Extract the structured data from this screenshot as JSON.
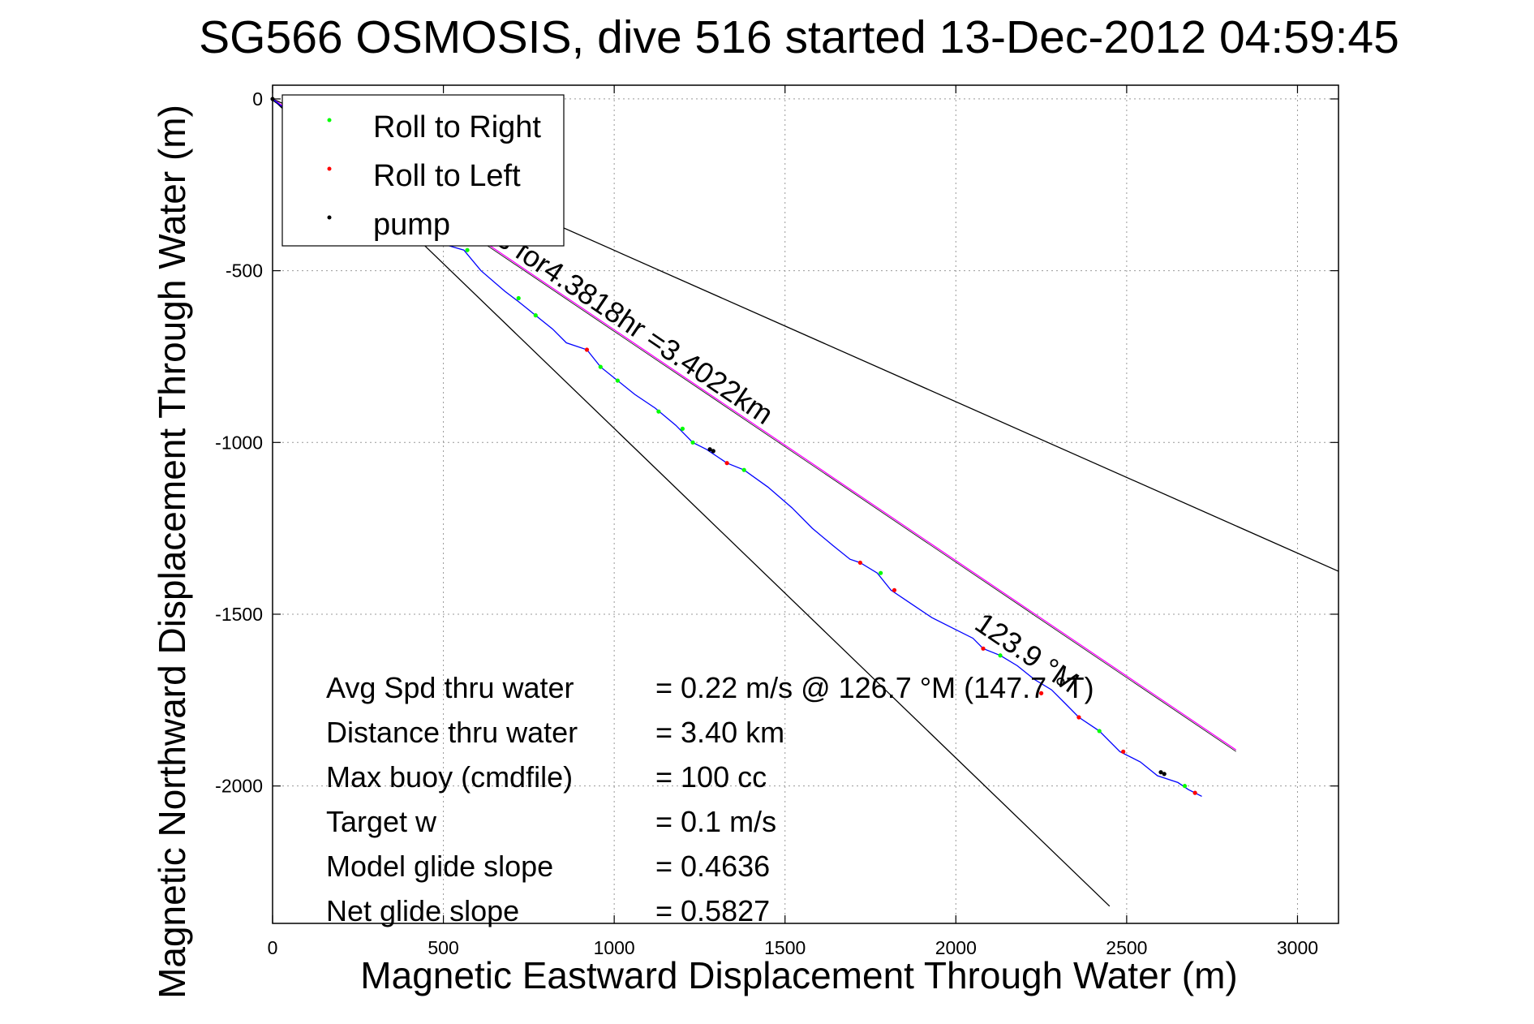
{
  "chart_data": {
    "type": "line",
    "title": "SG566 OSMOSIS, dive 516 started 13-Dec-2012 04:59:45",
    "xlabel": "Magnetic Eastward Displacement Through Water (m)",
    "ylabel": "Magnetic Northward Displacement Through Water (m)",
    "xlim": [
      0,
      3120
    ],
    "ylim": [
      -2400,
      40
    ],
    "xticks": [
      0,
      500,
      1000,
      1500,
      2000,
      2500,
      3000
    ],
    "yticks": [
      0,
      -500,
      -1000,
      -1500,
      -2000
    ],
    "grid": true,
    "legend": {
      "placement": "top-left",
      "entries": [
        {
          "label": "Roll to Right",
          "color": "#00ff00"
        },
        {
          "label": "Roll to Left",
          "color": "#ff0000"
        },
        {
          "label": "pump",
          "color": "#000000"
        }
      ]
    },
    "track": {
      "color": "#0000ff",
      "points": [
        [
          0,
          0
        ],
        [
          50,
          -40
        ],
        [
          120,
          -100
        ],
        [
          200,
          -170
        ],
        [
          280,
          -230
        ],
        [
          360,
          -300
        ],
        [
          430,
          -360
        ],
        [
          490,
          -420
        ],
        [
          560,
          -440
        ],
        [
          610,
          -500
        ],
        [
          680,
          -560
        ],
        [
          720,
          -590
        ],
        [
          770,
          -630
        ],
        [
          820,
          -670
        ],
        [
          860,
          -710
        ],
        [
          920,
          -730
        ],
        [
          960,
          -780
        ],
        [
          1010,
          -820
        ],
        [
          1060,
          -860
        ],
        [
          1120,
          -900
        ],
        [
          1180,
          -950
        ],
        [
          1230,
          -1000
        ],
        [
          1270,
          -1020
        ],
        [
          1330,
          -1060
        ],
        [
          1380,
          -1080
        ],
        [
          1450,
          -1130
        ],
        [
          1520,
          -1190
        ],
        [
          1580,
          -1250
        ],
        [
          1640,
          -1300
        ],
        [
          1690,
          -1340
        ],
        [
          1720,
          -1350
        ],
        [
          1770,
          -1380
        ],
        [
          1810,
          -1430
        ],
        [
          1870,
          -1470
        ],
        [
          1930,
          -1510
        ],
        [
          1990,
          -1540
        ],
        [
          2050,
          -1570
        ],
        [
          2080,
          -1600
        ],
        [
          2130,
          -1620
        ],
        [
          2180,
          -1650
        ],
        [
          2230,
          -1690
        ],
        [
          2280,
          -1720
        ],
        [
          2320,
          -1760
        ],
        [
          2360,
          -1800
        ],
        [
          2420,
          -1840
        ],
        [
          2480,
          -1900
        ],
        [
          2540,
          -1930
        ],
        [
          2590,
          -1970
        ],
        [
          2650,
          -1990
        ],
        [
          2680,
          -2010
        ],
        [
          2720,
          -2030
        ]
      ]
    },
    "markers": {
      "roll_right": [
        [
          320,
          -270
        ],
        [
          570,
          -440
        ],
        [
          720,
          -580
        ],
        [
          770,
          -630
        ],
        [
          960,
          -780
        ],
        [
          1010,
          -820
        ],
        [
          1130,
          -910
        ],
        [
          1200,
          -960
        ],
        [
          1230,
          -1000
        ],
        [
          1380,
          -1080
        ],
        [
          1780,
          -1380
        ],
        [
          2130,
          -1620
        ],
        [
          2420,
          -1840
        ],
        [
          2670,
          -2000
        ]
      ],
      "roll_left": [
        [
          400,
          -340
        ],
        [
          920,
          -730
        ],
        [
          1330,
          -1060
        ],
        [
          1720,
          -1350
        ],
        [
          1820,
          -1430
        ],
        [
          2080,
          -1600
        ],
        [
          2250,
          -1730
        ],
        [
          2360,
          -1800
        ],
        [
          2490,
          -1900
        ],
        [
          2700,
          -2020
        ]
      ],
      "pump": [
        [
          0,
          0
        ],
        [
          1280,
          -1020
        ],
        [
          1290,
          -1025
        ],
        [
          2600,
          -1960
        ],
        [
          2610,
          -1965
        ]
      ]
    },
    "reference_lines": [
      {
        "name": "upper-bound",
        "color": "#000000",
        "from": [
          0,
          0
        ],
        "to": [
          3120,
          -1375
        ]
      },
      {
        "name": "lower-bound",
        "color": "#000000",
        "from": [
          0,
          0
        ],
        "to": [
          2450,
          -2350
        ]
      },
      {
        "name": "average-heading",
        "color": "#ff00ff",
        "from": [
          0,
          0
        ],
        "to": [
          2820,
          -1895
        ]
      }
    ],
    "annotations": {
      "heading_line_label": "Dur: ... s for4.3818hr =3.4022km",
      "heading_line_label_visible": "s for4.3818hr =3.4022km",
      "heading_label": "123.9 °M",
      "stats": [
        {
          "label": "Avg Spd thru water",
          "value": "=  0.22 m/s @ 126.7 °M (147.7 °T)"
        },
        {
          "label": "Distance thru water",
          "value": "=  3.40 km"
        },
        {
          "label": "Max buoy (cmdfile)",
          "value": "= 100 cc"
        },
        {
          "label": "Target w",
          "value": "= 0.1 m/s"
        },
        {
          "label": "Model glide slope",
          "value": "= 0.4636"
        },
        {
          "label": "Net glide slope",
          "value": "= 0.5827"
        }
      ]
    }
  }
}
